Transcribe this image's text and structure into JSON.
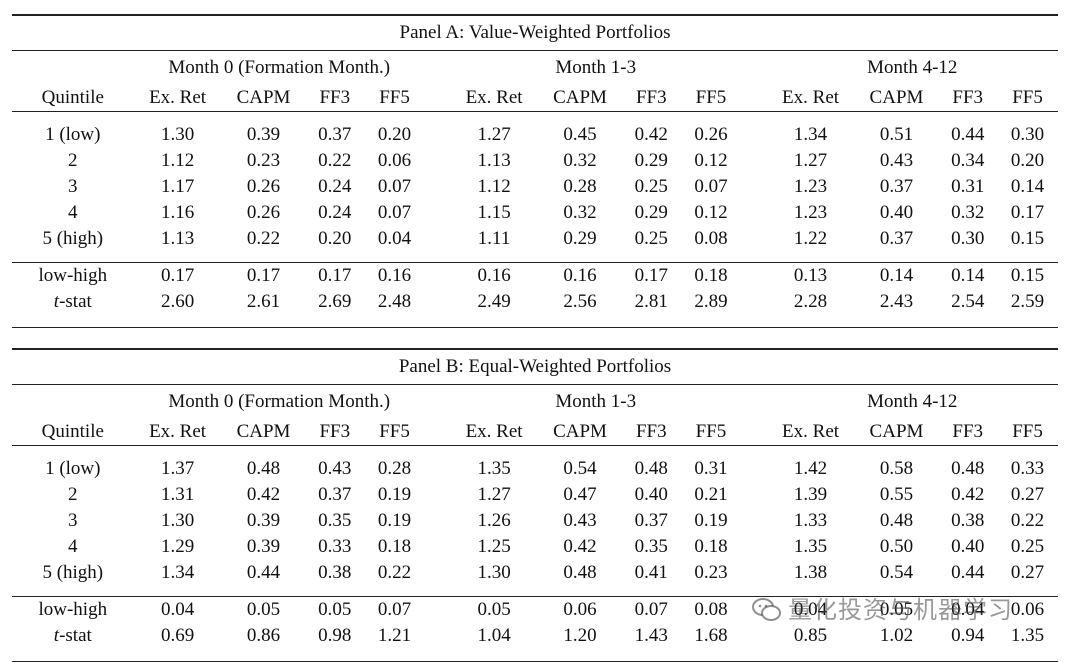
{
  "headers": {
    "quintile": "Quintile",
    "groups": [
      "Month 0 (Formation Month.)",
      "Month 1-3",
      "Month 4-12"
    ],
    "columns": [
      "Ex. Ret",
      "CAPM",
      "FF3",
      "FF5"
    ]
  },
  "panels": [
    {
      "title": "Panel A: Value-Weighted Portfolios",
      "rows": [
        {
          "label": "1 (low)",
          "values": [
            "1.30",
            "0.39",
            "0.37",
            "0.20",
            "1.27",
            "0.45",
            "0.42",
            "0.26",
            "1.34",
            "0.51",
            "0.44",
            "0.30"
          ]
        },
        {
          "label": "2",
          "values": [
            "1.12",
            "0.23",
            "0.22",
            "0.06",
            "1.13",
            "0.32",
            "0.29",
            "0.12",
            "1.27",
            "0.43",
            "0.34",
            "0.20"
          ]
        },
        {
          "label": "3",
          "values": [
            "1.17",
            "0.26",
            "0.24",
            "0.07",
            "1.12",
            "0.28",
            "0.25",
            "0.07",
            "1.23",
            "0.37",
            "0.31",
            "0.14"
          ]
        },
        {
          "label": "4",
          "values": [
            "1.16",
            "0.26",
            "0.24",
            "0.07",
            "1.15",
            "0.32",
            "0.29",
            "0.12",
            "1.23",
            "0.40",
            "0.32",
            "0.17"
          ]
        },
        {
          "label": "5 (high)",
          "values": [
            "1.13",
            "0.22",
            "0.20",
            "0.04",
            "1.11",
            "0.29",
            "0.25",
            "0.08",
            "1.22",
            "0.37",
            "0.30",
            "0.15"
          ]
        }
      ],
      "summary": [
        {
          "label": "low-high",
          "values": [
            "0.17",
            "0.17",
            "0.17",
            "0.16",
            "0.16",
            "0.16",
            "0.17",
            "0.18",
            "0.13",
            "0.14",
            "0.14",
            "0.15"
          ]
        },
        {
          "label_italic": "t",
          "label_rest": "-stat",
          "values": [
            "2.60",
            "2.61",
            "2.69",
            "2.48",
            "2.49",
            "2.56",
            "2.81",
            "2.89",
            "2.28",
            "2.43",
            "2.54",
            "2.59"
          ]
        }
      ]
    },
    {
      "title": "Panel B: Equal-Weighted Portfolios",
      "rows": [
        {
          "label": "1 (low)",
          "values": [
            "1.37",
            "0.48",
            "0.43",
            "0.28",
            "1.35",
            "0.54",
            "0.48",
            "0.31",
            "1.42",
            "0.58",
            "0.48",
            "0.33"
          ]
        },
        {
          "label": "2",
          "values": [
            "1.31",
            "0.42",
            "0.37",
            "0.19",
            "1.27",
            "0.47",
            "0.40",
            "0.21",
            "1.39",
            "0.55",
            "0.42",
            "0.27"
          ]
        },
        {
          "label": "3",
          "values": [
            "1.30",
            "0.39",
            "0.35",
            "0.19",
            "1.26",
            "0.43",
            "0.37",
            "0.19",
            "1.33",
            "0.48",
            "0.38",
            "0.22"
          ]
        },
        {
          "label": "4",
          "values": [
            "1.29",
            "0.39",
            "0.33",
            "0.18",
            "1.25",
            "0.42",
            "0.35",
            "0.18",
            "1.35",
            "0.50",
            "0.40",
            "0.25"
          ]
        },
        {
          "label": "5 (high)",
          "values": [
            "1.34",
            "0.44",
            "0.38",
            "0.22",
            "1.30",
            "0.48",
            "0.41",
            "0.23",
            "1.38",
            "0.54",
            "0.44",
            "0.27"
          ]
        }
      ],
      "summary": [
        {
          "label": "low-high",
          "values": [
            "0.04",
            "0.05",
            "0.05",
            "0.07",
            "0.05",
            "0.06",
            "0.07",
            "0.08",
            "0.04",
            "0.05",
            "0.04",
            "0.06"
          ]
        },
        {
          "label_italic": "t",
          "label_rest": "-stat",
          "values": [
            "0.69",
            "0.86",
            "0.98",
            "1.21",
            "1.04",
            "1.20",
            "1.43",
            "1.68",
            "0.85",
            "1.02",
            "0.94",
            "1.35"
          ]
        }
      ]
    }
  ],
  "watermark": {
    "text": "量化投资与机器学习",
    "icon": "wechat-icon"
  }
}
